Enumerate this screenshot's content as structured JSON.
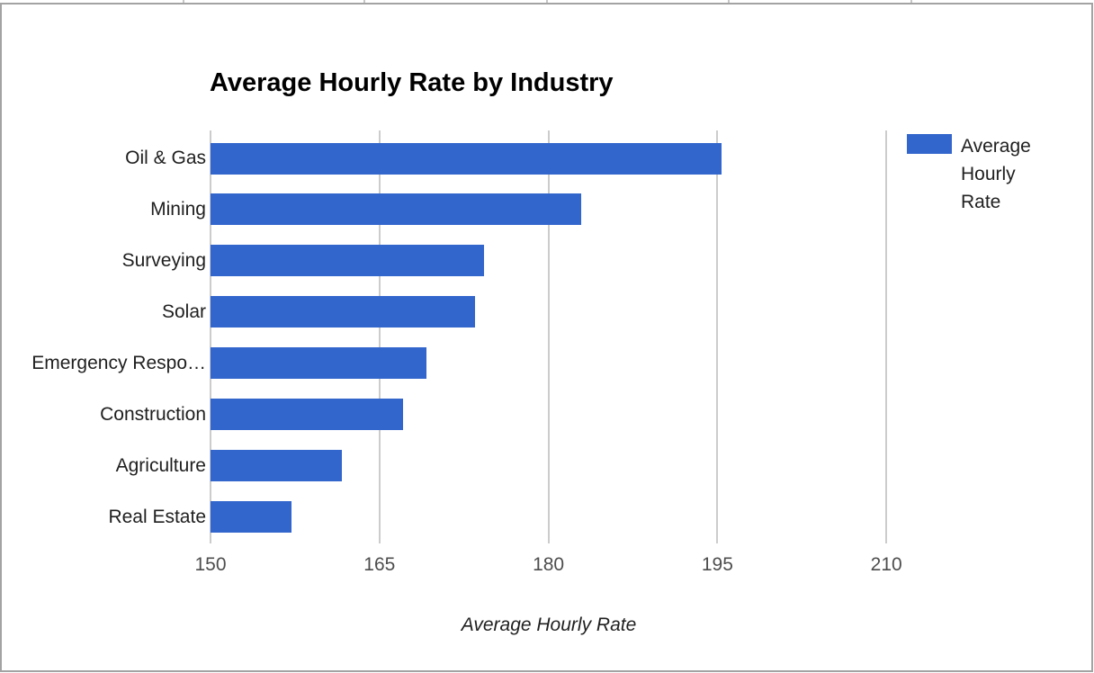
{
  "chart": {
    "title": "Average Hourly Rate by Industry",
    "legend": {
      "label": "Average Hourly Rate",
      "swatch_color": "#3366CC"
    },
    "x_axis": {
      "title": "Average Hourly Rate"
    }
  },
  "chart_data": {
    "type": "bar",
    "orientation": "horizontal",
    "title": "Average Hourly Rate by Industry",
    "categories": [
      "Oil & Gas",
      "Mining",
      "Surveying",
      "Solar",
      "Emergency Respo…",
      "Construction",
      "Agriculture",
      "Real Estate"
    ],
    "series": [
      {
        "name": "Average Hourly Rate",
        "values": [
          195.4,
          182.9,
          174.3,
          173.5,
          169.2,
          167.1,
          161.7,
          157.2
        ]
      }
    ],
    "xlabel": "Average Hourly Rate",
    "xlim": [
      150,
      225
    ],
    "x_ticks": [
      150,
      165,
      180,
      195,
      210
    ],
    "grid": true,
    "legend_position": "right",
    "bar_color": "#3366CC",
    "gridline_color": "#cccccc"
  }
}
